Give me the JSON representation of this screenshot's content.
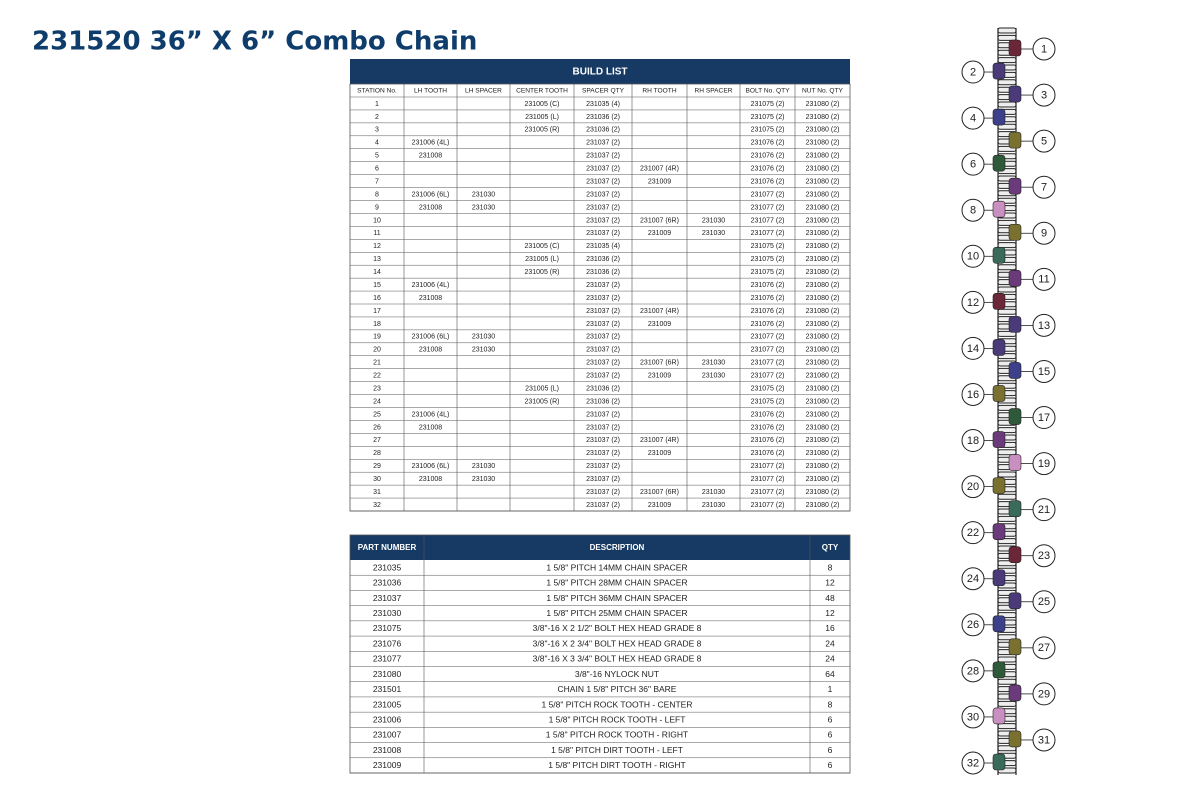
{
  "title": "231520 36” X 6” Combo Chain",
  "build_list": {
    "title": "BUILD LIST",
    "columns": [
      "STATION No.",
      "LH TOOTH",
      "LH SPACER",
      "CENTER TOOTH",
      "SPACER  QTY",
      "RH TOOTH",
      "RH SPACER",
      "BOLT No. QTY",
      "NUT No. QTY"
    ],
    "rows": [
      [
        "1",
        null,
        null,
        "231005 (C)",
        "231035  (4)",
        null,
        null,
        "231075  (2)",
        "231080  (2)"
      ],
      [
        "2",
        null,
        null,
        "231005 (L)",
        "231036  (2)",
        null,
        null,
        "231075  (2)",
        "231080  (2)"
      ],
      [
        "3",
        null,
        null,
        "231005 (R)",
        "231036  (2)",
        null,
        null,
        "231075  (2)",
        "231080  (2)"
      ],
      [
        "4",
        "231006 (4L)",
        null,
        null,
        "231037  (2)",
        null,
        null,
        "231076  (2)",
        "231080  (2)"
      ],
      [
        "5",
        "231008",
        null,
        null,
        "231037  (2)",
        null,
        null,
        "231076  (2)",
        "231080  (2)"
      ],
      [
        "6",
        null,
        null,
        null,
        "231037  (2)",
        "231007 (4R)",
        null,
        "231076  (2)",
        "231080  (2)"
      ],
      [
        "7",
        null,
        null,
        null,
        "231037  (2)",
        "231009",
        null,
        "231076  (2)",
        "231080  (2)"
      ],
      [
        "8",
        "231006 (6L)",
        "231030",
        null,
        "231037  (2)",
        null,
        null,
        "231077  (2)",
        "231080  (2)"
      ],
      [
        "9",
        "231008",
        "231030",
        null,
        "231037  (2)",
        null,
        null,
        "231077  (2)",
        "231080  (2)"
      ],
      [
        "10",
        null,
        null,
        null,
        "231037  (2)",
        "231007 (6R)",
        "231030",
        "231077  (2)",
        "231080  (2)"
      ],
      [
        "11",
        null,
        null,
        null,
        "231037  (2)",
        "231009",
        "231030",
        "231077  (2)",
        "231080  (2)"
      ],
      [
        "12",
        null,
        null,
        "231005 (C)",
        "231035  (4)",
        null,
        null,
        "231075  (2)",
        "231080  (2)"
      ],
      [
        "13",
        null,
        null,
        "231005 (L)",
        "231036  (2)",
        null,
        null,
        "231075  (2)",
        "231080  (2)"
      ],
      [
        "14",
        null,
        null,
        "231005 (R)",
        "231036  (2)",
        null,
        null,
        "231075  (2)",
        "231080  (2)"
      ],
      [
        "15",
        "231006 (4L)",
        null,
        null,
        "231037  (2)",
        null,
        null,
        "231076  (2)",
        "231080  (2)"
      ],
      [
        "16",
        "231008",
        null,
        null,
        "231037  (2)",
        null,
        null,
        "231076  (2)",
        "231080  (2)"
      ],
      [
        "17",
        null,
        null,
        null,
        "231037  (2)",
        "231007 (4R)",
        null,
        "231076  (2)",
        "231080  (2)"
      ],
      [
        "18",
        null,
        null,
        null,
        "231037  (2)",
        "231009",
        null,
        "231076  (2)",
        "231080  (2)"
      ],
      [
        "19",
        "231006 (6L)",
        "231030",
        null,
        "231037  (2)",
        null,
        null,
        "231077  (2)",
        "231080  (2)"
      ],
      [
        "20",
        "231008",
        "231030",
        null,
        "231037  (2)",
        null,
        null,
        "231077  (2)",
        "231080  (2)"
      ],
      [
        "21",
        null,
        null,
        null,
        "231037  (2)",
        "231007 (6R)",
        "231030",
        "231077  (2)",
        "231080  (2)"
      ],
      [
        "22",
        null,
        null,
        null,
        "231037  (2)",
        "231009",
        "231030",
        "231077  (2)",
        "231080  (2)"
      ],
      [
        "23",
        null,
        null,
        "231005 (L)",
        "231036  (2)",
        null,
        null,
        "231075  (2)",
        "231080  (2)"
      ],
      [
        "24",
        null,
        null,
        "231005 (R)",
        "231036  (2)",
        null,
        null,
        "231075  (2)",
        "231080  (2)"
      ],
      [
        "25",
        "231006 (4L)",
        null,
        null,
        "231037  (2)",
        null,
        null,
        "231076  (2)",
        "231080  (2)"
      ],
      [
        "26",
        "231008",
        null,
        null,
        "231037  (2)",
        null,
        null,
        "231076  (2)",
        "231080  (2)"
      ],
      [
        "27",
        null,
        null,
        null,
        "231037  (2)",
        "231007 (4R)",
        null,
        "231076  (2)",
        "231080  (2)"
      ],
      [
        "28",
        null,
        null,
        null,
        "231037  (2)",
        "231009",
        null,
        "231076  (2)",
        "231080  (2)"
      ],
      [
        "29",
        "231006 (6L)",
        "231030",
        null,
        "231037  (2)",
        null,
        null,
        "231077  (2)",
        "231080  (2)"
      ],
      [
        "30",
        "231008",
        "231030",
        null,
        "231037  (2)",
        null,
        null,
        "231077  (2)",
        "231080  (2)"
      ],
      [
        "31",
        null,
        null,
        null,
        "231037  (2)",
        "231007 (6R)",
        "231030",
        "231077  (2)",
        "231080  (2)"
      ],
      [
        "32",
        null,
        null,
        null,
        "231037  (2)",
        "231009",
        "231030",
        "231077  (2)",
        "231080  (2)"
      ]
    ]
  },
  "parts": {
    "columns": [
      "PART NUMBER",
      "DESCRIPTION",
      "QTY"
    ],
    "rows": [
      [
        "231035",
        "1 5/8\" PITCH 14MM CHAIN SPACER",
        "8"
      ],
      [
        "231036",
        "1 5/8\" PITCH 28MM CHAIN SPACER",
        "12"
      ],
      [
        "231037",
        "1 5/8\" PITCH 36MM CHAIN SPACER",
        "48"
      ],
      [
        "231030",
        "1 5/8\" PITCH 25MM CHAIN SPACER",
        "12"
      ],
      [
        "231075",
        "3/8\"-16 X 2 1/2\" BOLT HEX HEAD GRADE 8",
        "16"
      ],
      [
        "231076",
        "3/8\"-16 X 2 3/4\" BOLT HEX HEAD GRADE 8",
        "24"
      ],
      [
        "231077",
        "3/8\"-16 X 3 3/4\" BOLT HEX HEAD GRADE 8",
        "24"
      ],
      [
        "231080",
        "3/8\"-16 NYLOCK NUT",
        "64"
      ],
      [
        "231501",
        "CHAIN 1 5/8\" PITCH 36\" BARE",
        "1"
      ],
      [
        "231005",
        "1 5/8\" PITCH ROCK TOOTH - CENTER",
        "8"
      ],
      [
        "231006",
        "1 5/8\" PITCH ROCK TOOTH - LEFT",
        "6"
      ],
      [
        "231007",
        "1 5/8\" PITCH ROCK TOOTH - RIGHT",
        "6"
      ],
      [
        "231008",
        "1 5/8\" PITCH DIRT TOOTH - LEFT",
        "6"
      ],
      [
        "231009",
        "1 5/8\" PITCH DIRT TOOTH - RIGHT",
        "6"
      ]
    ]
  },
  "callouts": [
    "1",
    "2",
    "3",
    "4",
    "5",
    "6",
    "7",
    "8",
    "9",
    "10",
    "11",
    "12",
    "13",
    "14",
    "15",
    "16",
    "17",
    "18",
    "19",
    "20",
    "21",
    "22",
    "23",
    "24",
    "25",
    "26",
    "27",
    "28",
    "29",
    "30",
    "31",
    "32"
  ]
}
